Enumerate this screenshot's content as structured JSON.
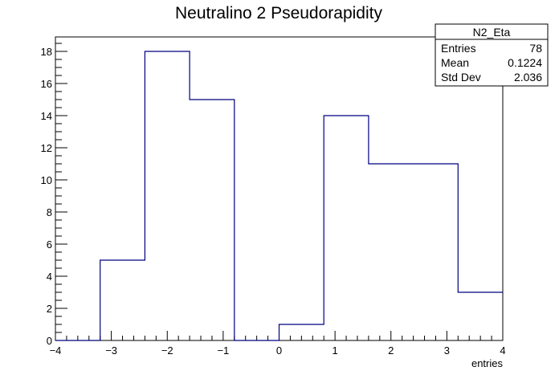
{
  "chart_data": {
    "type": "histogram",
    "title": "Neutralino 2 Pseudorapidity",
    "xlabel": "entries",
    "ylabel": "",
    "xlim": [
      -4,
      4
    ],
    "ylim": [
      0,
      18.9
    ],
    "bin_edges": [
      -4.0,
      -3.2,
      -2.4,
      -1.6,
      -0.8,
      0.0,
      0.8,
      1.6,
      2.4,
      3.2,
      4.0
    ],
    "values": [
      0,
      5,
      18,
      15,
      0,
      1,
      14,
      11,
      11,
      3
    ],
    "line_color": "#000080",
    "x_ticks": [
      -4,
      -3,
      -2,
      -1,
      0,
      1,
      2,
      3,
      4
    ],
    "x_tick_labels": [
      "−4",
      "−3",
      "−2",
      "−1",
      "0",
      "1",
      "2",
      "3",
      "4"
    ],
    "y_ticks": [
      0,
      2,
      4,
      6,
      8,
      10,
      12,
      14,
      16,
      18
    ],
    "y_tick_labels": [
      "0",
      "2",
      "4",
      "6",
      "8",
      "10",
      "12",
      "14",
      "16",
      "18"
    ],
    "stats_box": {
      "name": "N2_Eta",
      "rows": [
        {
          "label": "Entries",
          "value": "78"
        },
        {
          "label": "Mean",
          "value": "0.1224"
        },
        {
          "label": "Std Dev",
          "value": "2.036"
        }
      ]
    }
  }
}
